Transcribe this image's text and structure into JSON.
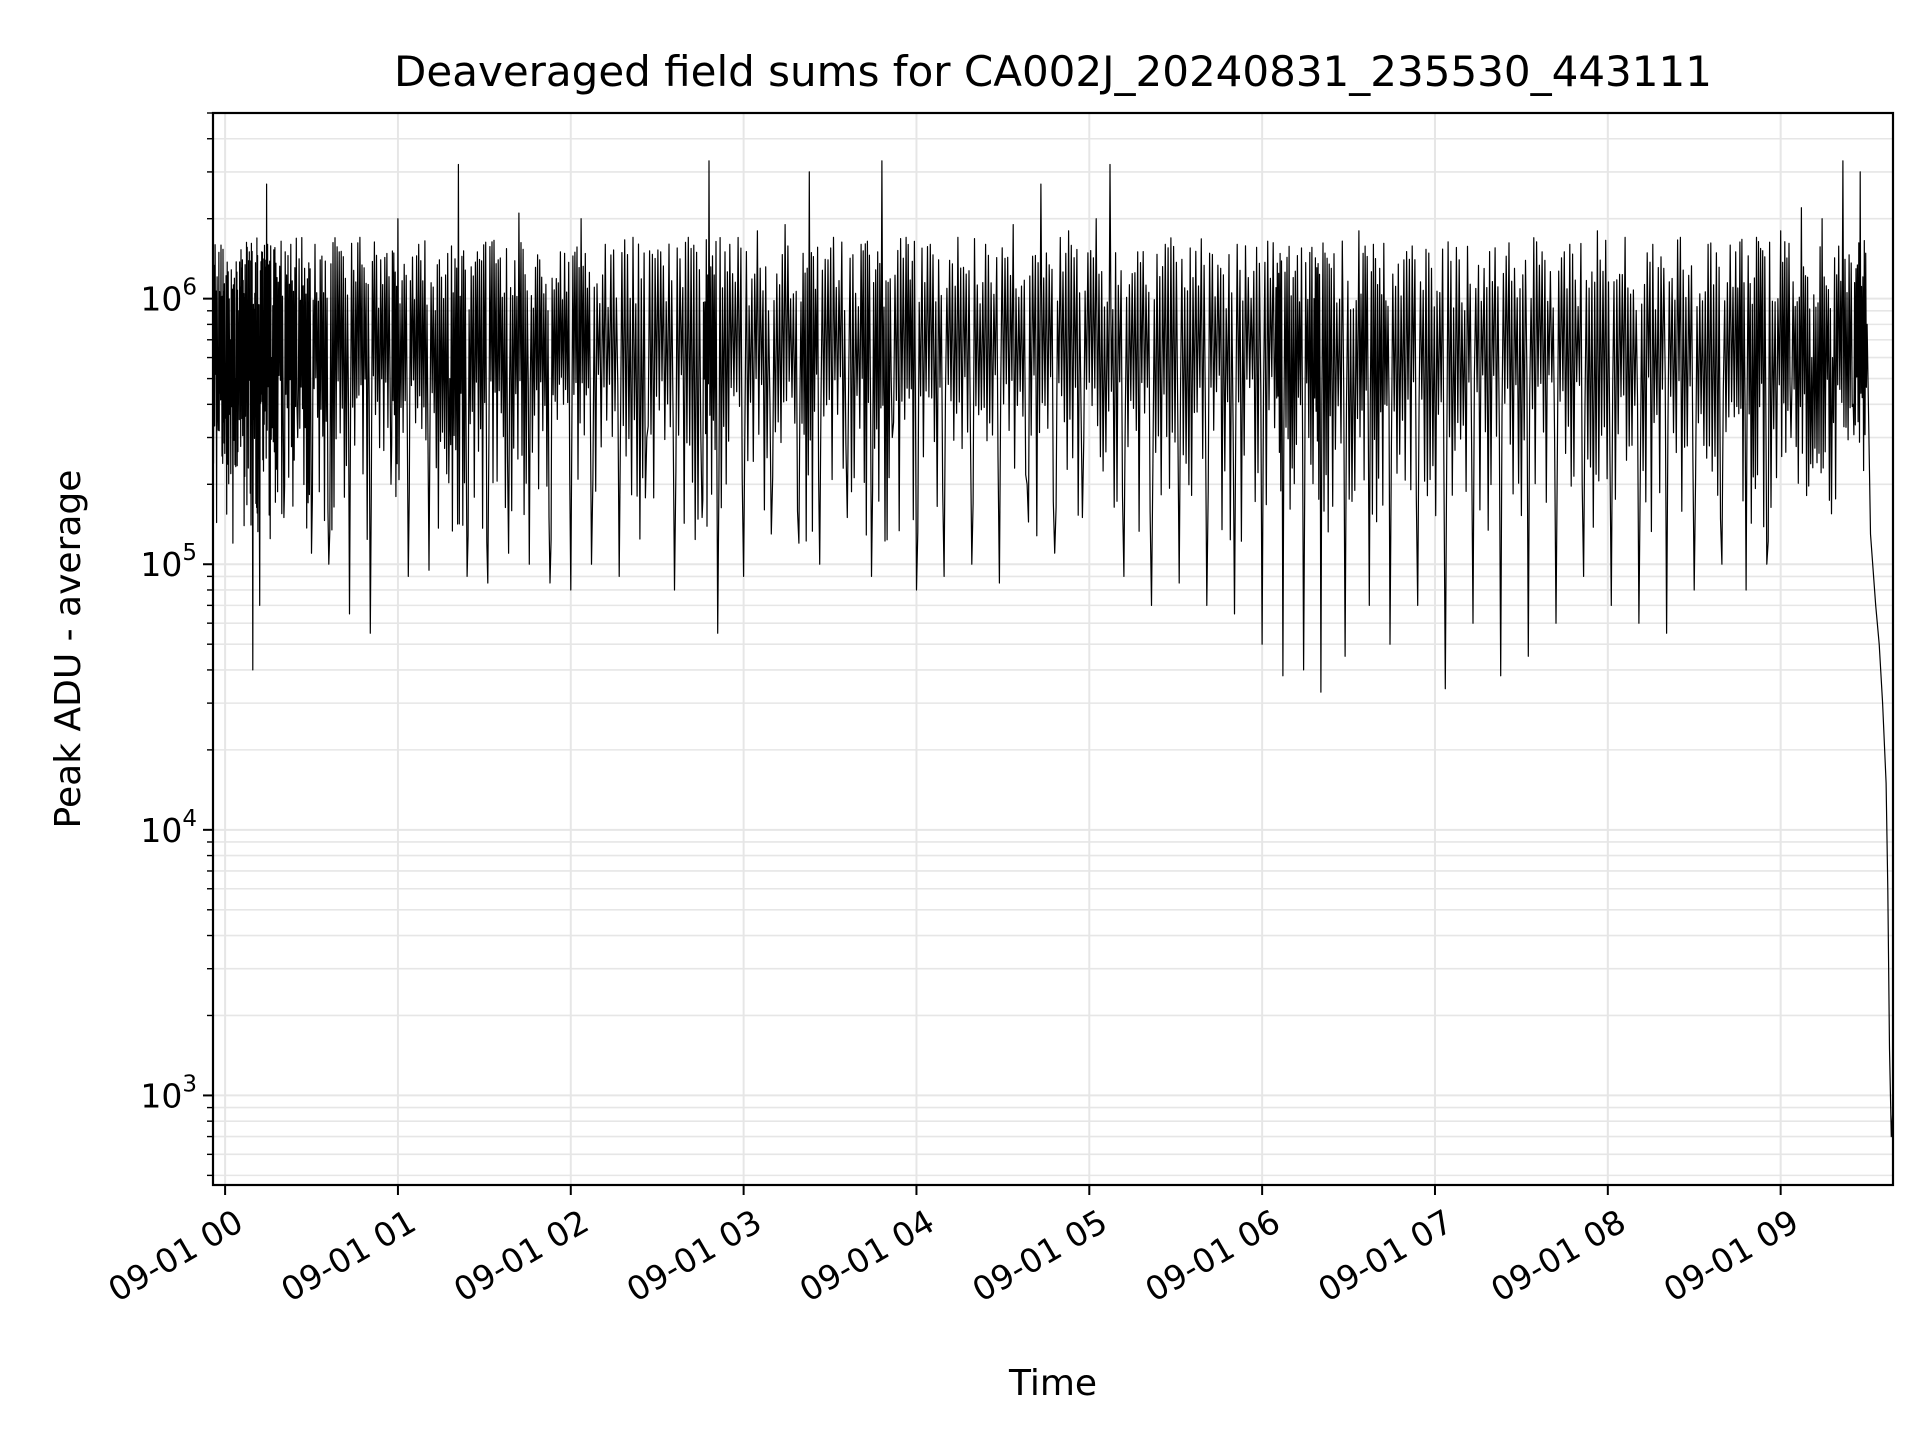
{
  "chart_data": {
    "type": "line",
    "title": "Deaveraged field sums for CA002J_20240831_235530_443111",
    "xlabel": "Time",
    "ylabel": "Peak ADU - average",
    "yscale": "log",
    "grid": true,
    "xlim": [
      -0.07,
      9.65
    ],
    "ylim": [
      460,
      5000000
    ],
    "x_unit": "hours after 09-01 00:00",
    "xticks": [
      {
        "value": 0,
        "label": "09-01 00"
      },
      {
        "value": 1,
        "label": "09-01 01"
      },
      {
        "value": 2,
        "label": "09-01 02"
      },
      {
        "value": 3,
        "label": "09-01 03"
      },
      {
        "value": 4,
        "label": "09-01 04"
      },
      {
        "value": 5,
        "label": "09-01 05"
      },
      {
        "value": 6,
        "label": "09-01 06"
      },
      {
        "value": 7,
        "label": "09-01 07"
      },
      {
        "value": 8,
        "label": "09-01 08"
      },
      {
        "value": 9,
        "label": "09-01 09"
      }
    ],
    "yticks": [
      {
        "value": 1000,
        "base": "10",
        "exponent": "3"
      },
      {
        "value": 10000,
        "base": "10",
        "exponent": "4"
      },
      {
        "value": 100000,
        "base": "10",
        "exponent": "5"
      },
      {
        "value": 1000000,
        "base": "10",
        "exponent": "6"
      }
    ],
    "series": [
      {
        "name": "",
        "color": "#000000",
        "points": [
          [
            -0.07,
            600000
          ],
          [
            -0.04,
            320000
          ],
          [
            -0.02,
            950000
          ],
          [
            0.0,
            450000
          ],
          [
            0.03,
            700000
          ],
          [
            0.06,
            500000
          ],
          [
            0.08,
            650000
          ],
          [
            0.1,
            1400000
          ],
          [
            0.12,
            1000000
          ],
          [
            0.14,
            1500000
          ],
          [
            0.16,
            40000
          ],
          [
            0.18,
            500000
          ],
          [
            0.2,
            70000
          ],
          [
            0.22,
            900000
          ],
          [
            0.24,
            2700000
          ],
          [
            0.27,
            600000
          ],
          [
            0.3,
            1200000
          ],
          [
            0.34,
            150000
          ],
          [
            0.38,
            1600000
          ],
          [
            0.42,
            300000
          ],
          [
            0.46,
            1300000
          ],
          [
            0.5,
            110000
          ],
          [
            0.55,
            1400000
          ],
          [
            0.6,
            100000
          ],
          [
            0.66,
            1500000
          ],
          [
            0.72,
            65000
          ],
          [
            0.78,
            1700000
          ],
          [
            0.84,
            55000
          ],
          [
            0.9,
            1400000
          ],
          [
            0.96,
            200000
          ],
          [
            1.0,
            2000000
          ],
          [
            1.06,
            90000
          ],
          [
            1.12,
            1600000
          ],
          [
            1.18,
            95000
          ],
          [
            1.24,
            1400000
          ],
          [
            1.3,
            500000
          ],
          [
            1.35,
            3200000
          ],
          [
            1.4,
            90000
          ],
          [
            1.46,
            1500000
          ],
          [
            1.52,
            85000
          ],
          [
            1.58,
            1400000
          ],
          [
            1.64,
            110000
          ],
          [
            1.7,
            2100000
          ],
          [
            1.76,
            100000
          ],
          [
            1.82,
            1400000
          ],
          [
            1.88,
            85000
          ],
          [
            1.94,
            1500000
          ],
          [
            2.0,
            80000
          ],
          [
            2.06,
            2000000
          ],
          [
            2.12,
            100000
          ],
          [
            2.2,
            1600000
          ],
          [
            2.28,
            90000
          ],
          [
            2.36,
            1700000
          ],
          [
            2.44,
            300000
          ],
          [
            2.52,
            1500000
          ],
          [
            2.6,
            80000
          ],
          [
            2.68,
            1700000
          ],
          [
            2.76,
            150000
          ],
          [
            2.8,
            3300000
          ],
          [
            2.85,
            55000
          ],
          [
            2.92,
            1600000
          ],
          [
            3.0,
            90000
          ],
          [
            3.08,
            1800000
          ],
          [
            3.16,
            130000
          ],
          [
            3.24,
            1900000
          ],
          [
            3.32,
            120000
          ],
          [
            3.38,
            3000000
          ],
          [
            3.44,
            100000
          ],
          [
            3.52,
            1700000
          ],
          [
            3.6,
            150000
          ],
          [
            3.68,
            1600000
          ],
          [
            3.74,
            90000
          ],
          [
            3.8,
            3300000
          ],
          [
            3.86,
            300000
          ],
          [
            3.94,
            1700000
          ],
          [
            4.0,
            80000
          ],
          [
            4.08,
            1600000
          ],
          [
            4.16,
            90000
          ],
          [
            4.24,
            1700000
          ],
          [
            4.32,
            100000
          ],
          [
            4.4,
            1600000
          ],
          [
            4.48,
            85000
          ],
          [
            4.56,
            1900000
          ],
          [
            4.64,
            200000
          ],
          [
            4.72,
            2700000
          ],
          [
            4.8,
            110000
          ],
          [
            4.88,
            1800000
          ],
          [
            4.96,
            150000
          ],
          [
            5.04,
            2000000
          ],
          [
            5.12,
            3200000
          ],
          [
            5.2,
            90000
          ],
          [
            5.28,
            1500000
          ],
          [
            5.36,
            70000
          ],
          [
            5.44,
            1600000
          ],
          [
            5.52,
            85000
          ],
          [
            5.6,
            1200000
          ],
          [
            5.68,
            70000
          ],
          [
            5.76,
            1300000
          ],
          [
            5.84,
            65000
          ],
          [
            5.92,
            1200000
          ],
          [
            6.0,
            50000
          ],
          [
            6.08,
            1100000
          ],
          [
            6.12,
            38000
          ],
          [
            6.18,
            1200000
          ],
          [
            6.24,
            40000
          ],
          [
            6.3,
            1000000
          ],
          [
            6.34,
            33000
          ],
          [
            6.4,
            1300000
          ],
          [
            6.48,
            45000
          ],
          [
            6.56,
            1800000
          ],
          [
            6.62,
            70000
          ],
          [
            6.68,
            1300000
          ],
          [
            6.74,
            50000
          ],
          [
            6.82,
            1400000
          ],
          [
            6.9,
            70000
          ],
          [
            6.98,
            1300000
          ],
          [
            7.06,
            34000
          ],
          [
            7.14,
            1400000
          ],
          [
            7.22,
            60000
          ],
          [
            7.3,
            1100000
          ],
          [
            7.38,
            38000
          ],
          [
            7.46,
            1300000
          ],
          [
            7.54,
            45000
          ],
          [
            7.62,
            1500000
          ],
          [
            7.7,
            60000
          ],
          [
            7.78,
            1600000
          ],
          [
            7.86,
            90000
          ],
          [
            7.94,
            1800000
          ],
          [
            8.02,
            70000
          ],
          [
            8.1,
            1700000
          ],
          [
            8.18,
            60000
          ],
          [
            8.26,
            1600000
          ],
          [
            8.34,
            55000
          ],
          [
            8.42,
            1700000
          ],
          [
            8.5,
            80000
          ],
          [
            8.58,
            1600000
          ],
          [
            8.66,
            100000
          ],
          [
            8.74,
            1500000
          ],
          [
            8.8,
            80000
          ],
          [
            8.86,
            1700000
          ],
          [
            8.92,
            100000
          ],
          [
            9.0,
            1800000
          ],
          [
            9.06,
            300000
          ],
          [
            9.12,
            2200000
          ],
          [
            9.18,
            600000
          ],
          [
            9.24,
            2000000
          ],
          [
            9.3,
            600000
          ],
          [
            9.36,
            3300000
          ],
          [
            9.42,
            400000
          ],
          [
            9.46,
            3000000
          ],
          [
            9.5,
            800000
          ],
          [
            9.52,
            130000
          ],
          [
            9.55,
            70000
          ],
          [
            9.57,
            50000
          ],
          [
            9.59,
            30000
          ],
          [
            9.61,
            15000
          ],
          [
            9.62,
            6000
          ],
          [
            9.63,
            1500
          ],
          [
            9.64,
            700
          ],
          [
            9.65,
            900
          ]
        ]
      }
    ]
  }
}
